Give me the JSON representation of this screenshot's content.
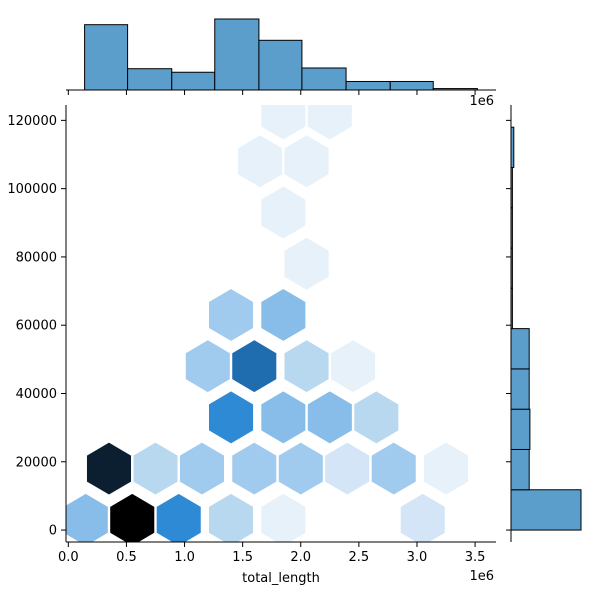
{
  "chart_data": {
    "type": "hexbin",
    "title": "",
    "xlabel": "total_length",
    "ylabel": "",
    "x_scale_label": "1e6",
    "top_scale_label": "1e6",
    "xlim": [
      -0.02,
      3.68
    ],
    "ylim": [
      -3500,
      124500
    ],
    "x_ticks": [
      0.0,
      0.5,
      1.0,
      1.5,
      2.0,
      2.5,
      3.0,
      3.5
    ],
    "x_tick_labels": [
      "0.0",
      "0.5",
      "1.0",
      "1.5",
      "2.0",
      "2.5",
      "3.0",
      "3.5"
    ],
    "y_ticks": [
      0,
      20000,
      40000,
      60000,
      80000,
      100000,
      120000
    ],
    "y_tick_labels": [
      "0",
      "20000",
      "40000",
      "60000",
      "80000",
      "100000",
      "120000"
    ],
    "hex_colors": [
      "#e6f1fa",
      "#d3e5f6",
      "#b8d8f0",
      "#a0cbee",
      "#87bde8",
      "#5aa1de",
      "#2f8ad6",
      "#1f6cae",
      "#0c1f30",
      "#000000"
    ],
    "hexbins": [
      {
        "x": 0.15,
        "y": 3000,
        "level": 4
      },
      {
        "x": 0.55,
        "y": 3000,
        "level": 9
      },
      {
        "x": 0.95,
        "y": 3000,
        "level": 6
      },
      {
        "x": 1.4,
        "y": 3000,
        "level": 2
      },
      {
        "x": 1.85,
        "y": 3000,
        "level": 0
      },
      {
        "x": 3.05,
        "y": 3000,
        "level": 1
      },
      {
        "x": 0.35,
        "y": 18000,
        "level": 8
      },
      {
        "x": 0.75,
        "y": 18000,
        "level": 2
      },
      {
        "x": 1.15,
        "y": 18000,
        "level": 3
      },
      {
        "x": 1.6,
        "y": 18000,
        "level": 3
      },
      {
        "x": 2.0,
        "y": 18000,
        "level": 3
      },
      {
        "x": 2.4,
        "y": 18000,
        "level": 1
      },
      {
        "x": 2.8,
        "y": 18000,
        "level": 3
      },
      {
        "x": 3.25,
        "y": 18000,
        "level": 0
      },
      {
        "x": 1.4,
        "y": 33000,
        "level": 6
      },
      {
        "x": 1.85,
        "y": 33000,
        "level": 4
      },
      {
        "x": 2.25,
        "y": 33000,
        "level": 4
      },
      {
        "x": 2.65,
        "y": 33000,
        "level": 2
      },
      {
        "x": 1.2,
        "y": 48000,
        "level": 3
      },
      {
        "x": 1.6,
        "y": 48000,
        "level": 7
      },
      {
        "x": 2.05,
        "y": 48000,
        "level": 2
      },
      {
        "x": 2.45,
        "y": 48000,
        "level": 0
      },
      {
        "x": 1.4,
        "y": 63000,
        "level": 3
      },
      {
        "x": 1.85,
        "y": 63000,
        "level": 4
      },
      {
        "x": 2.05,
        "y": 78000,
        "level": 0
      },
      {
        "x": 1.85,
        "y": 93000,
        "level": 0
      },
      {
        "x": 1.65,
        "y": 108000,
        "level": 0
      },
      {
        "x": 2.05,
        "y": 108000,
        "level": 0
      },
      {
        "x": 1.85,
        "y": 122000,
        "level": 0
      },
      {
        "x": 2.25,
        "y": 122000,
        "level": 0
      }
    ],
    "hex_radius_y": 15000,
    "marginal_x": {
      "bins": [
        0.14,
        0.51,
        0.89,
        1.26,
        1.64,
        2.01,
        2.39,
        2.77,
        3.14,
        3.52
      ],
      "relative_heights": [
        0.92,
        0.3,
        0.25,
        1.0,
        0.7,
        0.31,
        0.12,
        0.12,
        0.02
      ]
    },
    "marginal_y": {
      "bins": [
        0,
        11800,
        23600,
        35400,
        47200,
        59000,
        70800,
        82600,
        94400,
        106200,
        118000
      ],
      "relative_widths": [
        1.0,
        0.26,
        0.27,
        0.26,
        0.26,
        0.02,
        0.02,
        0.02,
        0.02,
        0.04
      ]
    },
    "bar_color": "#5b9ecb",
    "bar_edge": "#000000",
    "grid": false,
    "legend": "none"
  }
}
